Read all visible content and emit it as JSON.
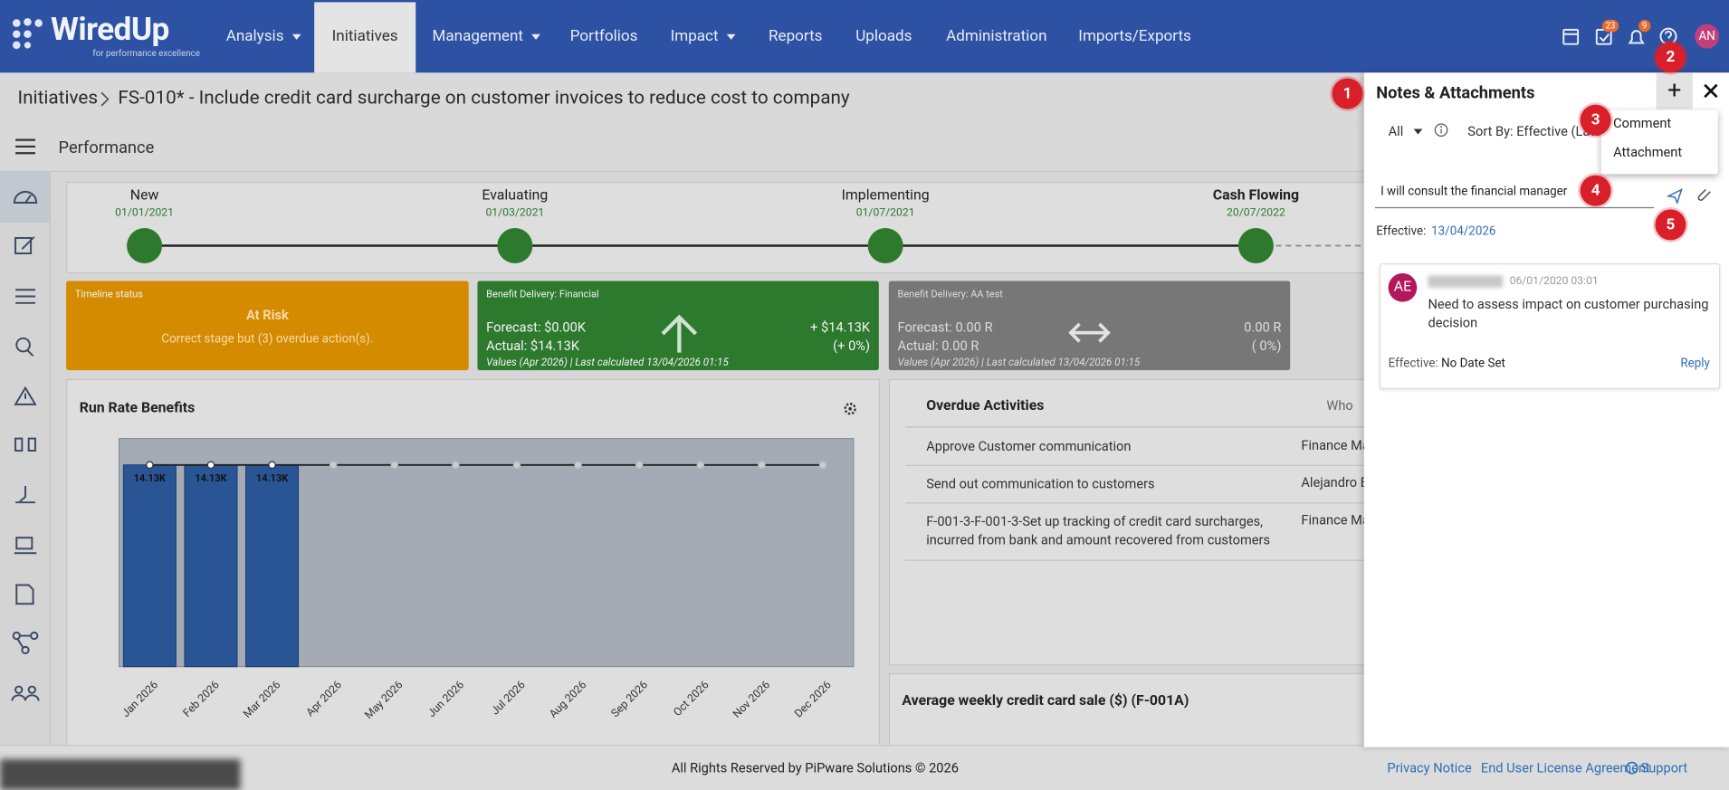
{
  "nav": {
    "logo": "WiredUp",
    "tagline": "for performance excellence",
    "items": [
      "Analysis",
      "Initiatives",
      "Management",
      "Portfolios",
      "Impact",
      "Reports",
      "Uploads",
      "Administration",
      "Imports/Exports"
    ],
    "badges": [
      "23",
      "9"
    ],
    "avatar": "AN"
  },
  "breadcrumb": {
    "root": "Initiatives",
    "title": "FS-010* - Include credit card surcharge on customer invoices to reduce cost to company"
  },
  "section": "Performance",
  "stages": [
    {
      "name": "New",
      "date": "01/01/2021"
    },
    {
      "name": "Evaluating",
      "date": "01/03/2021"
    },
    {
      "name": "Implementing",
      "date": "01/07/2021"
    },
    {
      "name": "Cash Flowing",
      "date": "20/07/2022"
    }
  ],
  "timeline_card": {
    "label": "Timeline status",
    "status": "At Risk",
    "text": "Correct stage but (3) overdue action(s)."
  },
  "financial_card": {
    "label": "Benefit Delivery: Financial",
    "forecast": "Forecast: $0.00K",
    "actual": "Actual: $14.13K",
    "delta": "+ $14.13K",
    "delta_pct": "(+ 0%)",
    "footer": "Values (Apr 2026) | Last calculated 13/04/2026 01:15"
  },
  "aa_card": {
    "label": "Benefit Delivery: AA test",
    "forecast": "Forecast: 0.00 R",
    "actual": "Actual: 0.00 R",
    "delta": "0.00 R",
    "delta_pct": "( 0%)",
    "footer": "Values (Apr 2026) | Last calculated 13/04/2026 01:15"
  },
  "run_rate": {
    "title": "Run Rate Benefits",
    "months": [
      "Jan 2026",
      "Feb 2026",
      "Mar 2026",
      "Apr 2026",
      "May 2026",
      "Jun 2026",
      "Jul 2026",
      "Aug 2026",
      "Sep 2026",
      "Oct 2026",
      "Nov 2026",
      "Dec 2026"
    ],
    "bar_labels": [
      "14.13K",
      "14.13K",
      "14.13K"
    ]
  },
  "overdue": {
    "title": "Overdue Activities",
    "who_header": "Who",
    "rows": [
      {
        "activity": "Approve Customer communication",
        "who": "Finance Ma"
      },
      {
        "activity": "Send out communication to customers",
        "who": "Alejandro Ba"
      },
      {
        "activity": "F-001-3-F-001-3-Set up tracking of credit card surcharges, incurred from bank and amount recovered from customers",
        "who": "Finance Ma"
      }
    ]
  },
  "avg_weekly": {
    "title": "Average weekly credit card sale ($) (F-001A)"
  },
  "footer": {
    "copyright": "All Rights Reserved by PiPware Solutions © 2026",
    "links": [
      "Privacy Notice",
      "End User License Agreement",
      "Support"
    ]
  },
  "panel": {
    "title": "Notes & Attachments",
    "filter": "All",
    "sort": "Sort By: Effective (Lates",
    "menu": [
      "Comment",
      "Attachment"
    ],
    "input": "I will consult the financial manager",
    "effective_label": "Effective:",
    "effective_date": "13/04/2026",
    "note": {
      "initials": "AE",
      "datetime": "06/01/2020 03:01",
      "text": "Need to assess impact on customer purchasing decision",
      "effective_label": "Effective:",
      "effective_value": "No Date Set",
      "reply": "Reply"
    }
  },
  "callouts": [
    "1",
    "2",
    "3",
    "4",
    "5"
  ]
}
